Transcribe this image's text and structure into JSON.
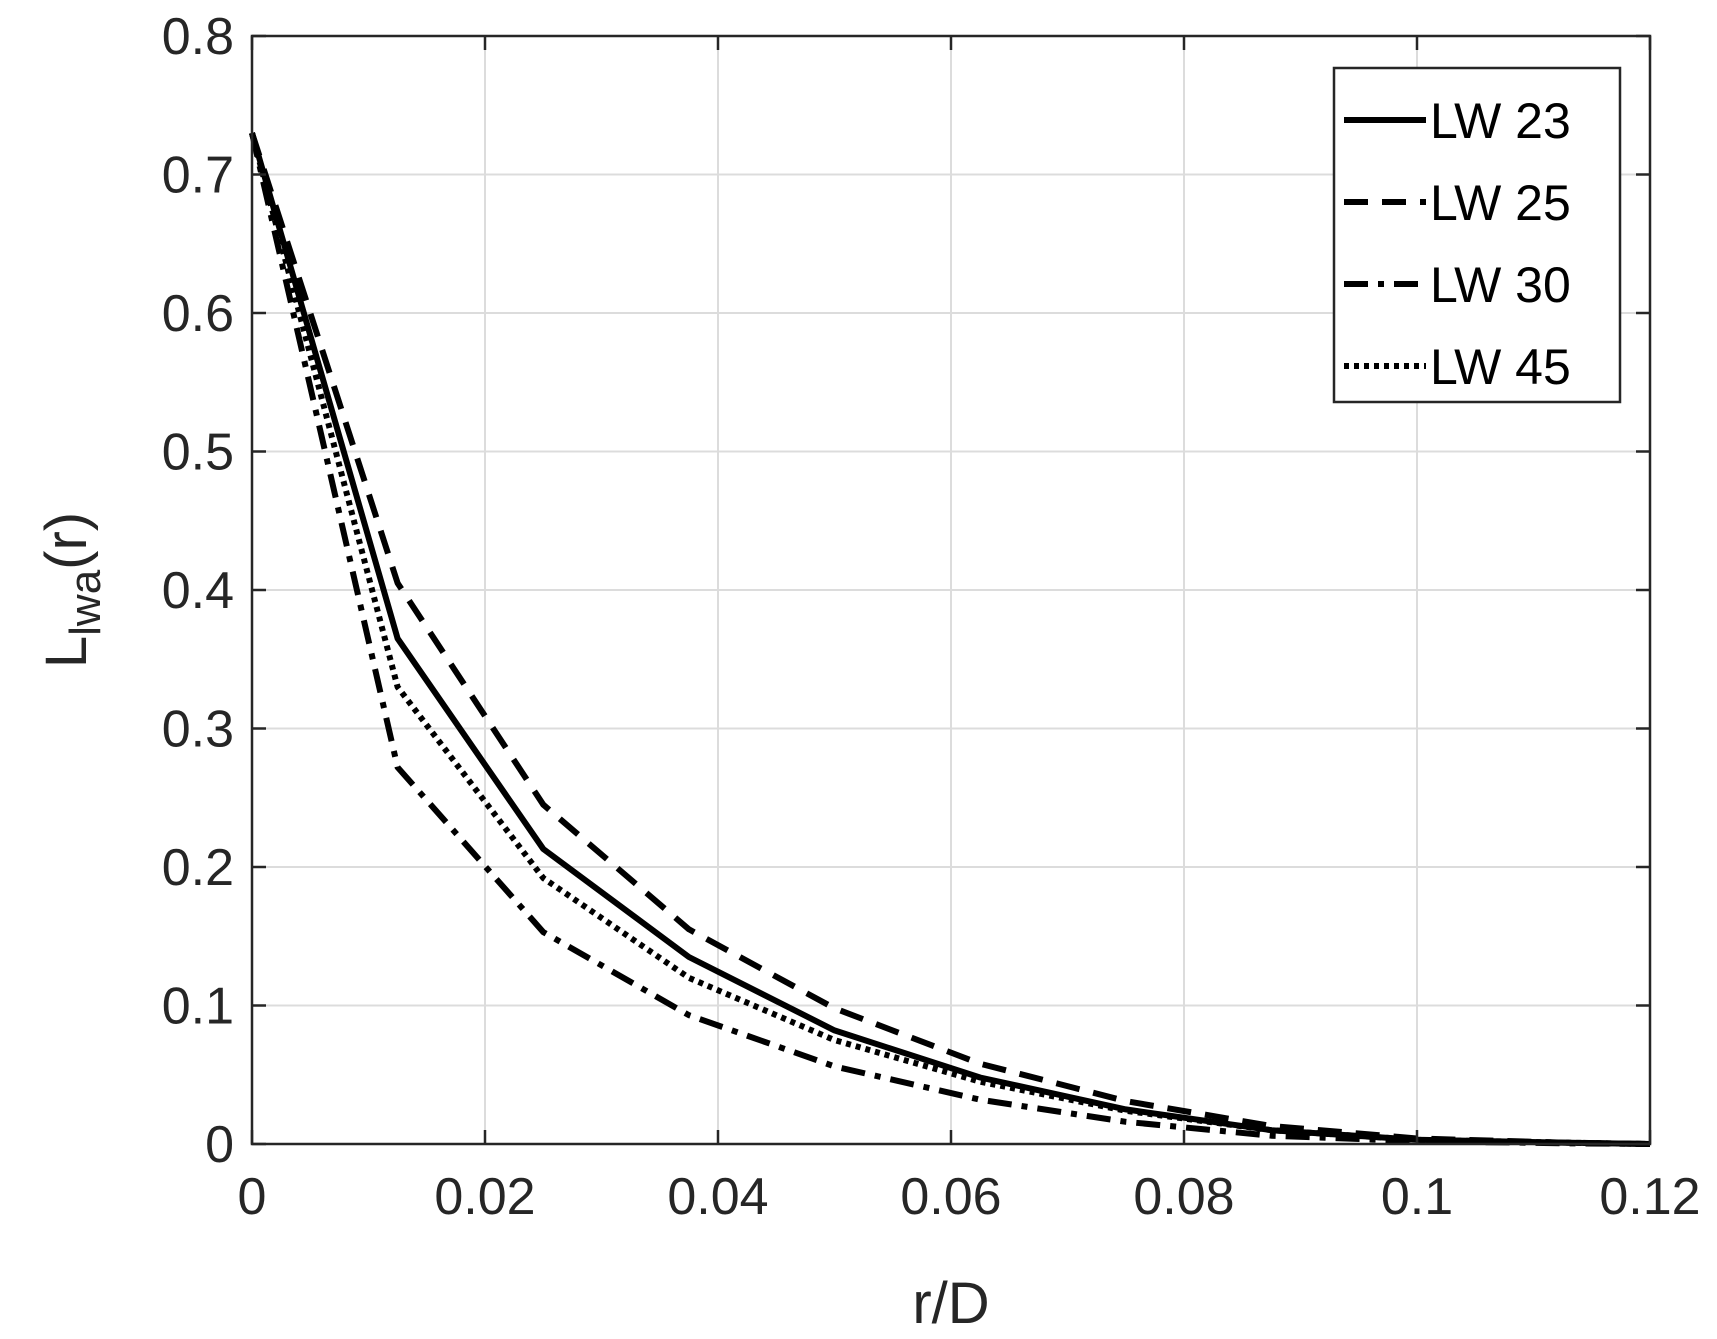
{
  "chart_data": {
    "type": "line",
    "xlabel": "r/D",
    "ylabel": {
      "main": "L",
      "subscript": "lwa",
      "suffix": "(r)"
    },
    "xlim": [
      0,
      0.12
    ],
    "ylim": [
      0,
      0.8
    ],
    "xticks": [
      "0",
      "0.02",
      "0.04",
      "0.06",
      "0.08",
      "0.1",
      "0.12"
    ],
    "yticks": [
      "0",
      "0.1",
      "0.2",
      "0.3",
      "0.4",
      "0.5",
      "0.6",
      "0.7",
      "0.8"
    ],
    "grid": true,
    "legend_position": "top-right",
    "x": [
      0,
      0.0125,
      0.025,
      0.0375,
      0.05,
      0.0625,
      0.075,
      0.0875,
      0.1,
      0.1125,
      0.12
    ],
    "series": [
      {
        "name": "LW 23",
        "style": "solid",
        "values": [
          0.73,
          0.365,
          0.213,
          0.135,
          0.082,
          0.048,
          0.025,
          0.01,
          0.003,
          0.001,
          0.0
        ]
      },
      {
        "name": "LW 25",
        "style": "dashed",
        "values": [
          0.73,
          0.405,
          0.245,
          0.155,
          0.098,
          0.058,
          0.031,
          0.013,
          0.004,
          0.001,
          0.0
        ]
      },
      {
        "name": "LW 30",
        "style": "dashdot",
        "values": [
          0.73,
          0.272,
          0.153,
          0.093,
          0.056,
          0.032,
          0.016,
          0.006,
          0.002,
          0.0005,
          0.0
        ]
      },
      {
        "name": "LW 45",
        "style": "dotted",
        "values": [
          0.73,
          0.33,
          0.192,
          0.12,
          0.075,
          0.045,
          0.024,
          0.01,
          0.003,
          0.001,
          0.0
        ]
      }
    ],
    "colors": {
      "line": "#000000",
      "grid": "#dcdcdc",
      "axis": "#262626"
    }
  }
}
